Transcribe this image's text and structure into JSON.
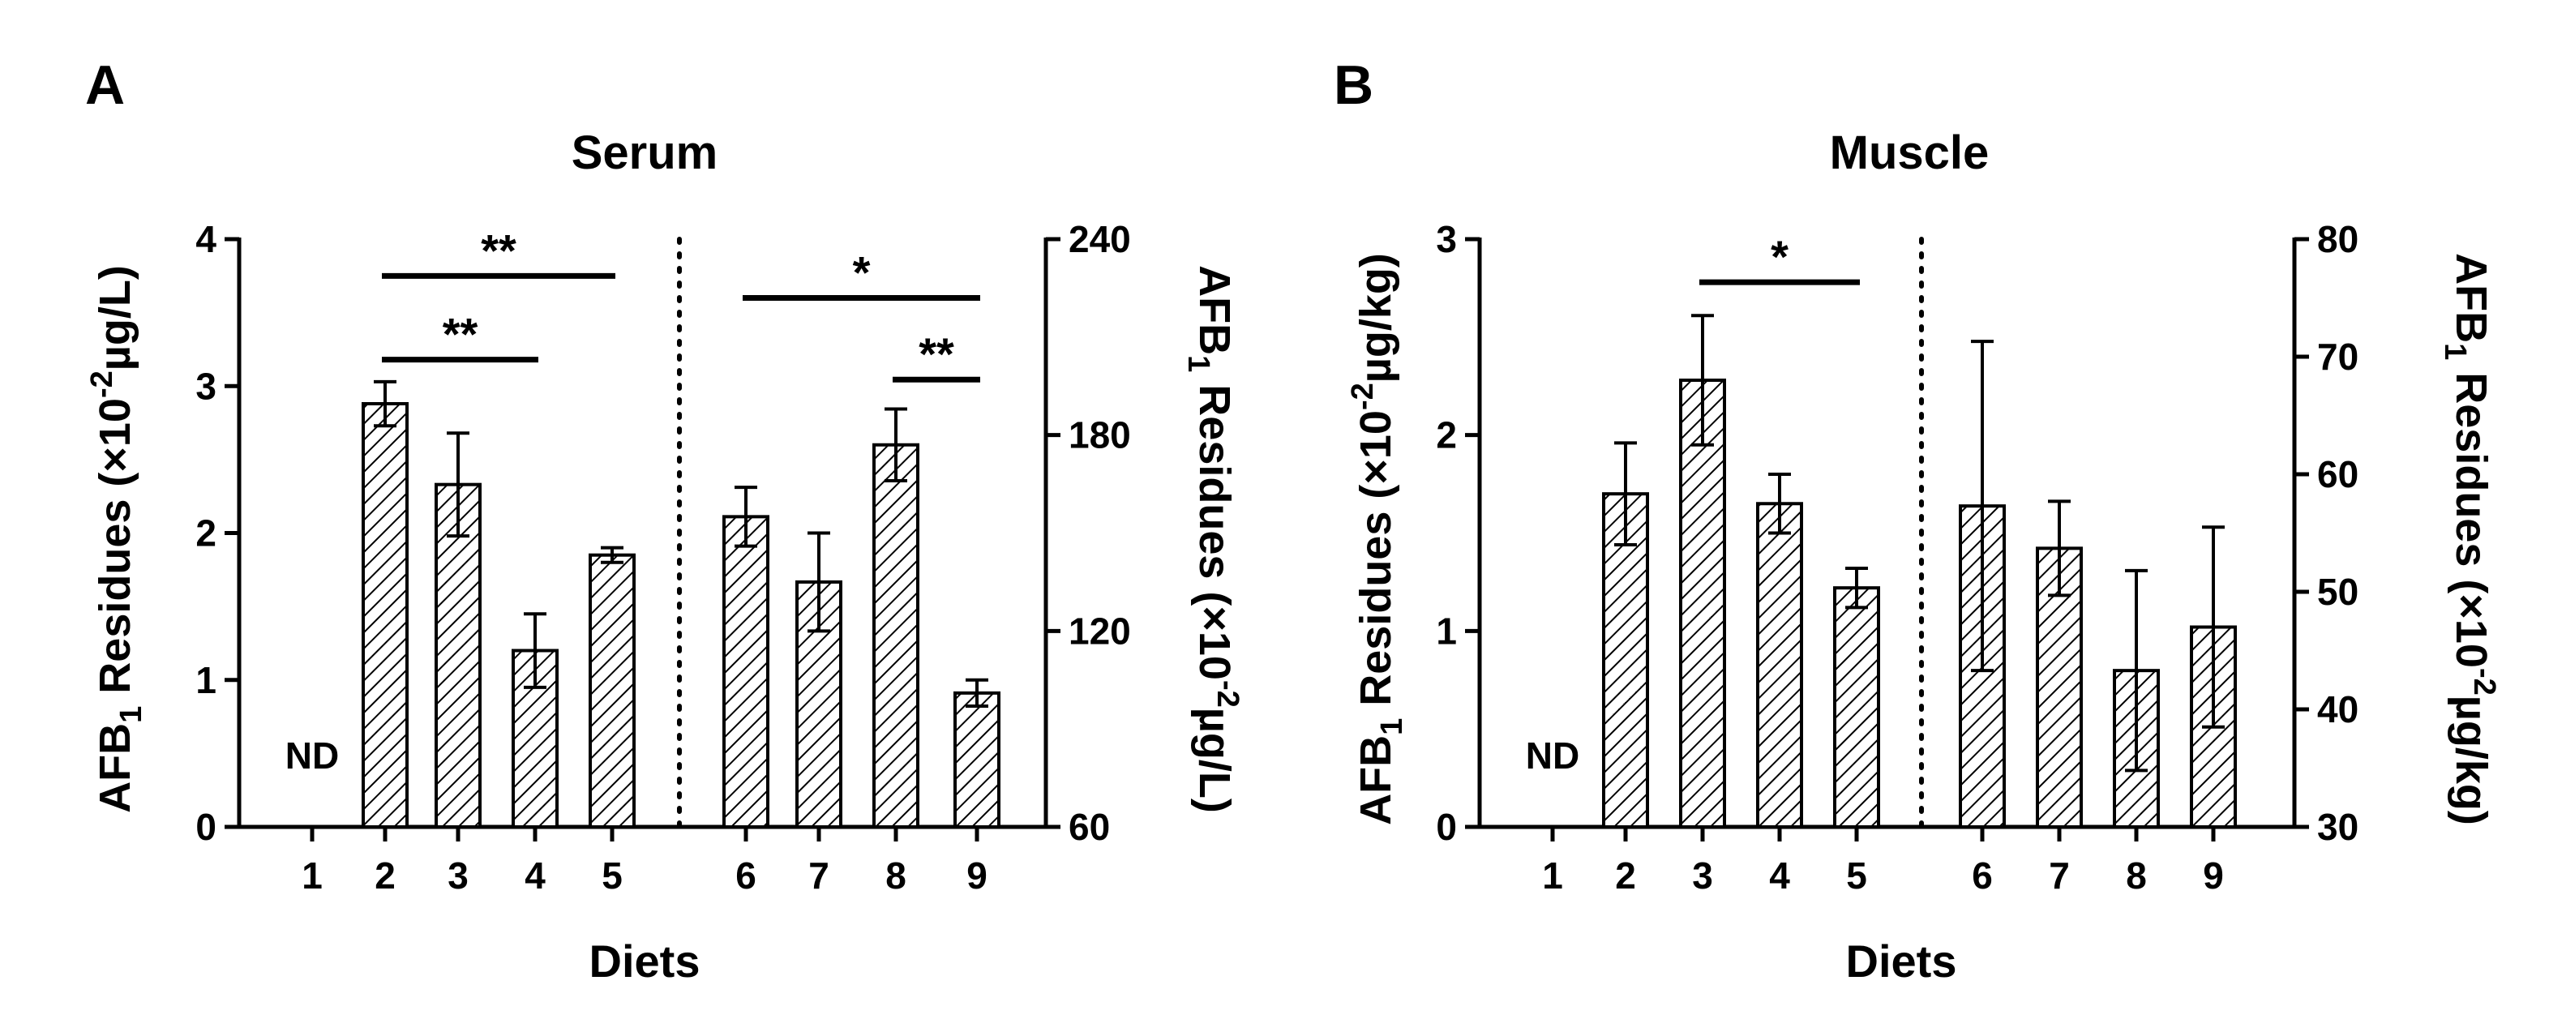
{
  "chart_data": [
    {
      "panel": "A",
      "type": "bar",
      "title": "Serum",
      "xlabel": "Diets",
      "ylabel_left": {
        "prefix": "AFB",
        "sub": "1",
        "mid": " Residues (×10",
        "sup": "-2",
        "suffix": "µg/L)"
      },
      "ylabel_right": {
        "prefix": "AFB",
        "sub": "1",
        "mid": " Residues (×10",
        "sup": "-2",
        "suffix": "µg/L)"
      },
      "categories": [
        "1",
        "2",
        "3",
        "4",
        "5",
        "6",
        "7",
        "8",
        "9"
      ],
      "groups": {
        "left": {
          "categories": [
            "1",
            "2",
            "3",
            "4",
            "5"
          ],
          "axis": "left"
        },
        "right": {
          "categories": [
            "6",
            "7",
            "8",
            "9"
          ],
          "axis": "right"
        }
      },
      "left_axis": {
        "ylim": [
          0,
          4
        ],
        "ticks": [
          0,
          1,
          2,
          3,
          4
        ],
        "tick_labels": [
          "0",
          "1",
          "2",
          "3",
          "4"
        ]
      },
      "right_axis": {
        "ylim": [
          60,
          240
        ],
        "ticks": [
          60,
          120,
          180,
          240
        ],
        "tick_labels": [
          "60",
          "120",
          "180",
          "240"
        ]
      },
      "values": [
        null,
        2.88,
        2.33,
        1.2,
        1.85,
        155,
        135,
        177,
        101
      ],
      "errors": [
        null,
        0.15,
        0.35,
        0.25,
        0.05,
        9,
        15,
        11,
        4
      ],
      "nd_label": "ND",
      "nd_category": "1",
      "significance": [
        {
          "from": "2",
          "to": "5",
          "axis": "left",
          "y": 3.75,
          "label": "**"
        },
        {
          "from": "2",
          "to": "4",
          "axis": "left",
          "y": 3.18,
          "label": "**"
        },
        {
          "from": "6",
          "to": "9",
          "axis": "right",
          "y": 222,
          "label": "*"
        },
        {
          "from": "8",
          "to": "9",
          "axis": "right",
          "y": 197,
          "label": "**"
        }
      ]
    },
    {
      "panel": "B",
      "type": "bar",
      "title": "Muscle",
      "xlabel": "Diets",
      "ylabel_left": {
        "prefix": "AFB",
        "sub": "1",
        "mid": " Residues (×10",
        "sup": "-2",
        "suffix": "µg/kg)"
      },
      "ylabel_right": {
        "prefix": "AFB",
        "sub": "1",
        "mid": " Residues (×10",
        "sup": "-2",
        "suffix": "µg/kg)"
      },
      "categories": [
        "1",
        "2",
        "3",
        "4",
        "5",
        "6",
        "7",
        "8",
        "9"
      ],
      "groups": {
        "left": {
          "categories": [
            "1",
            "2",
            "3",
            "4",
            "5"
          ],
          "axis": "left"
        },
        "right": {
          "categories": [
            "6",
            "7",
            "8",
            "9"
          ],
          "axis": "right"
        }
      },
      "left_axis": {
        "ylim": [
          0,
          3
        ],
        "ticks": [
          0,
          1,
          2,
          3
        ],
        "tick_labels": [
          "0",
          "1",
          "2",
          "3"
        ]
      },
      "right_axis": {
        "ylim": [
          30,
          80
        ],
        "ticks": [
          30,
          40,
          50,
          60,
          70,
          80
        ],
        "tick_labels": [
          "30",
          "40",
          "50",
          "60",
          "70",
          "80"
        ]
      },
      "values": [
        null,
        1.7,
        2.28,
        1.65,
        1.22,
        57.3,
        53.7,
        43.3,
        47
      ],
      "errors": [
        null,
        0.26,
        0.33,
        0.15,
        0.1,
        14,
        4,
        8.5,
        8.5
      ],
      "nd_label": "ND",
      "nd_category": "1",
      "significance": [
        {
          "from": "3",
          "to": "5",
          "axis": "left",
          "y": 2.78,
          "label": "*"
        }
      ]
    }
  ]
}
